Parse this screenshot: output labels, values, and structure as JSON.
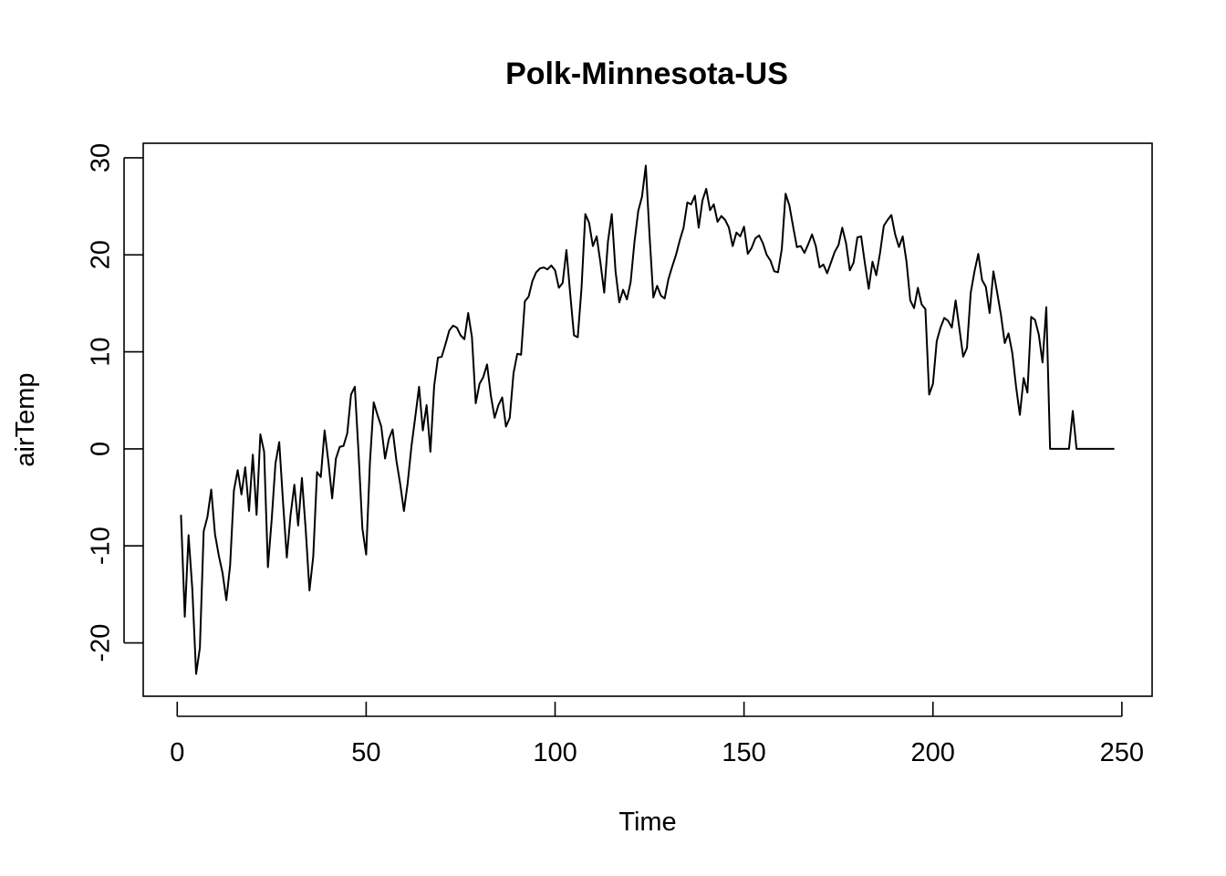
{
  "chart_data": {
    "type": "line",
    "title": "Polk-Minnesota-US",
    "xlabel": "Time",
    "ylabel": "airTemp",
    "xlim": [
      -9,
      258
    ],
    "ylim": [
      -25.5,
      31.5
    ],
    "x_ticks": [
      0,
      50,
      100,
      150,
      200,
      250
    ],
    "y_ticks": [
      -20,
      -10,
      0,
      10,
      20,
      30
    ],
    "x_tick_labels": [
      "0",
      "50",
      "100",
      "150",
      "200",
      "250"
    ],
    "y_tick_labels": [
      "-20",
      "-10",
      "0",
      "10",
      "20",
      "30"
    ],
    "grid": false,
    "legend": "none",
    "series": [
      {
        "x": [
          1,
          2,
          3,
          4,
          5,
          6,
          7,
          8,
          9,
          10,
          11,
          12,
          13,
          14,
          15,
          16,
          17,
          18,
          19,
          20,
          21,
          22,
          23,
          24,
          25,
          26,
          27,
          28,
          29,
          30,
          31,
          32,
          33,
          34,
          35,
          36,
          37,
          38,
          39,
          40,
          41,
          42,
          43,
          44,
          45,
          46,
          47,
          48,
          49,
          50,
          51,
          52,
          53,
          54,
          55,
          56,
          57,
          58,
          59,
          60,
          61,
          62,
          63,
          64,
          65,
          66,
          67,
          68,
          69,
          70,
          71,
          72,
          73,
          74,
          75,
          76,
          77,
          78,
          79,
          80,
          81,
          82,
          83,
          84,
          85,
          86,
          87,
          88,
          89,
          90,
          91,
          92,
          93,
          94,
          95,
          96,
          97,
          98,
          99,
          100,
          101,
          102,
          103,
          104,
          105,
          106,
          107,
          108,
          109,
          110,
          111,
          112,
          113,
          114,
          115,
          116,
          117,
          118,
          119,
          120,
          121,
          122,
          123,
          124,
          125,
          126,
          127,
          128,
          129,
          130,
          131,
          132,
          133,
          134,
          135,
          136,
          137,
          138,
          139,
          140,
          141,
          142,
          143,
          144,
          145,
          146,
          147,
          148,
          149,
          150,
          151,
          152,
          153,
          154,
          155,
          156,
          157,
          158,
          159,
          160,
          161,
          162,
          163,
          164,
          165,
          166,
          167,
          168,
          169,
          170,
          171,
          172,
          173,
          174,
          175,
          176,
          177,
          178,
          179,
          180,
          181,
          182,
          183,
          184,
          185,
          186,
          187,
          188,
          189,
          190,
          191,
          192,
          193,
          194,
          195,
          196,
          197,
          198,
          199,
          200,
          201,
          202,
          203,
          204,
          205,
          206,
          207,
          208,
          209,
          210,
          211,
          212,
          213,
          214,
          215,
          216,
          217,
          218,
          219,
          220,
          221,
          222,
          223,
          224,
          225,
          226,
          227,
          228,
          229,
          230,
          231,
          232,
          233,
          234,
          235,
          236,
          237,
          238,
          239,
          240,
          241,
          242,
          243,
          244,
          245,
          246,
          247,
          248
        ],
        "values": [
          -6.8,
          -17.3,
          -8.9,
          -14.5,
          -23.2,
          -20.5,
          -8.5,
          -7.0,
          -4.2,
          -8.8,
          -11.0,
          -12.8,
          -15.6,
          -12.0,
          -4.3,
          -2.2,
          -4.7,
          -1.9,
          -6.4,
          -0.6,
          -6.8,
          1.5,
          -0.3,
          -12.2,
          -7.3,
          -1.5,
          0.7,
          -5.5,
          -11.2,
          -6.8,
          -3.7,
          -7.9,
          -3.0,
          -8.3,
          -14.6,
          -11.1,
          -2.4,
          -2.9,
          1.9,
          -1.3,
          -5.1,
          -1.0,
          0.2,
          0.3,
          1.6,
          5.6,
          6.4,
          -0.5,
          -8.2,
          -10.9,
          -1.4,
          4.8,
          3.5,
          2.3,
          -1.0,
          1.0,
          2.0,
          -1.2,
          -3.6,
          -6.4,
          -3.5,
          0.3,
          3.3,
          6.4,
          1.9,
          4.5,
          -0.3,
          6.5,
          9.4,
          9.5,
          10.8,
          12.2,
          12.7,
          12.5,
          11.7,
          11.3,
          14.0,
          11.5,
          4.7,
          6.7,
          7.4,
          8.7,
          5.5,
          3.2,
          4.5,
          5.3,
          2.3,
          3.2,
          7.8,
          9.8,
          9.7,
          15.2,
          15.7,
          17.3,
          18.2,
          18.6,
          18.7,
          18.5,
          18.9,
          18.4,
          16.6,
          17.1,
          20.5,
          16.0,
          11.7,
          11.5,
          16.6,
          24.2,
          23.3,
          20.9,
          21.9,
          19.2,
          16.1,
          21.4,
          24.2,
          18.3,
          15.1,
          16.4,
          15.4,
          17.2,
          21.3,
          24.5,
          26.0,
          29.2,
          22.0,
          15.6,
          16.8,
          15.8,
          15.5,
          17.5,
          18.8,
          20.0,
          21.5,
          22.8,
          25.4,
          25.2,
          26.1,
          22.8,
          25.6,
          26.8,
          24.6,
          25.2,
          23.4,
          24.0,
          23.6,
          22.8,
          20.9,
          22.3,
          21.9,
          22.9,
          20.1,
          20.7,
          21.7,
          22.0,
          21.2,
          20.0,
          19.4,
          18.3,
          18.2,
          20.6,
          26.3,
          25.1,
          22.9,
          20.8,
          20.9,
          20.2,
          21.1,
          22.1,
          20.9,
          18.7,
          19.0,
          18.1,
          19.2,
          20.3,
          21.0,
          22.8,
          21.2,
          18.4,
          19.2,
          21.8,
          21.9,
          19.1,
          16.5,
          19.3,
          17.9,
          20.2,
          23.0,
          23.6,
          24.1,
          22.1,
          20.8,
          21.9,
          19.3,
          15.3,
          14.5,
          16.6,
          14.9,
          14.4,
          5.6,
          6.7,
          11.1,
          12.5,
          13.5,
          13.2,
          12.5,
          15.3,
          12.4,
          9.5,
          10.4,
          16.1,
          18.3,
          20.1,
          17.4,
          16.7,
          14.0,
          18.3,
          16.1,
          13.8,
          10.9,
          11.9,
          9.9,
          6.4,
          3.5,
          7.3,
          5.8,
          13.6,
          13.3,
          11.8,
          8.9,
          14.6,
          0.0,
          0.0,
          0.0,
          0.0,
          0.0,
          0.0,
          3.9,
          0.0,
          0.0,
          0.0,
          0.0,
          0.0,
          0.0,
          0.0,
          0.0,
          0.0,
          0.0,
          0.0
        ]
      }
    ]
  }
}
